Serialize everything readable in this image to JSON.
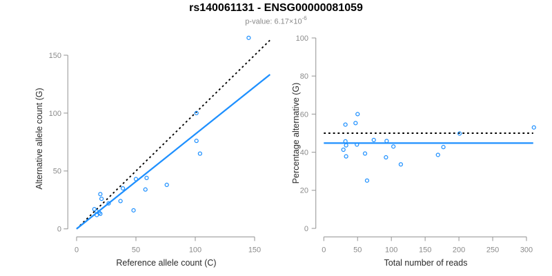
{
  "title": "rs140061131 - ENSG00000081059",
  "subtitle": {
    "text": "p-value: 6.17×10",
    "exponent": "-6"
  },
  "colors": {
    "point_blue": "#1E90FF",
    "fit_line_blue": "#1E90FF",
    "reference_line_black": "#000000",
    "axis_gray": "#9b9b9b",
    "tick_label_gray": "#8a8a8a",
    "axis_title_color": "#2b2b2b",
    "subtitle_gray": "#8a8a8a"
  },
  "chart_data": [
    {
      "type": "scatter",
      "name": "allele-counts-scatter",
      "xlabel": "Reference allele count (C)",
      "ylabel": "Alternative allele count (G)",
      "xlim": [
        0,
        165
      ],
      "ylim": [
        0,
        165
      ],
      "xticks": [
        0,
        50,
        100,
        150
      ],
      "yticks": [
        0,
        50,
        100,
        150
      ],
      "grid": false,
      "points": [
        [
          15,
          17
        ],
        [
          17,
          15
        ],
        [
          19,
          14
        ],
        [
          17,
          12
        ],
        [
          20,
          13
        ],
        [
          20,
          30
        ],
        [
          21,
          26
        ],
        [
          27,
          22
        ],
        [
          37,
          24
        ],
        [
          39,
          35
        ],
        [
          48,
          16
        ],
        [
          50,
          43
        ],
        [
          58,
          34
        ],
        [
          59,
          44
        ],
        [
          76,
          38
        ],
        [
          101,
          100
        ],
        [
          101,
          76
        ],
        [
          104,
          65
        ],
        [
          145,
          165
        ]
      ],
      "lines": [
        {
          "name": "identity-line",
          "type": "abline",
          "slope": 1,
          "intercept": 0,
          "style": "dotted",
          "color": "#000000"
        },
        {
          "name": "fit-line",
          "type": "abline",
          "slope": 0.818,
          "intercept": 0,
          "style": "solid",
          "color": "#1E90FF"
        }
      ]
    },
    {
      "type": "scatter",
      "name": "percentage-vs-reads-scatter",
      "xlabel": "Total number of reads",
      "ylabel": "Percentage alternative (G)",
      "xlim": [
        0,
        311
      ],
      "ylim": [
        0,
        100
      ],
      "xticks": [
        0,
        50,
        100,
        150,
        200,
        250,
        300
      ],
      "yticks": [
        0,
        20,
        40,
        60,
        80,
        100
      ],
      "grid": false,
      "points": [
        [
          32,
          54.5
        ],
        [
          32,
          45.7
        ],
        [
          33,
          43.6
        ],
        [
          29,
          41.3
        ],
        [
          33,
          37.8
        ],
        [
          50,
          60
        ],
        [
          47,
          55.3
        ],
        [
          49,
          44
        ],
        [
          61,
          39.3
        ],
        [
          74,
          46.4
        ],
        [
          64,
          25.1
        ],
        [
          92,
          37.3
        ],
        [
          93,
          45.9
        ],
        [
          103,
          43
        ],
        [
          114,
          33.6
        ],
        [
          169,
          38.6
        ],
        [
          177,
          42.7
        ],
        [
          201,
          49.8
        ],
        [
          311,
          53
        ]
      ],
      "lines": [
        {
          "name": "expected-50-line",
          "type": "hline",
          "y": 50,
          "style": "dotted",
          "color": "#000000"
        },
        {
          "name": "observed-mean-line",
          "type": "hline",
          "y": 44.8,
          "style": "solid",
          "color": "#1E90FF"
        }
      ]
    }
  ]
}
